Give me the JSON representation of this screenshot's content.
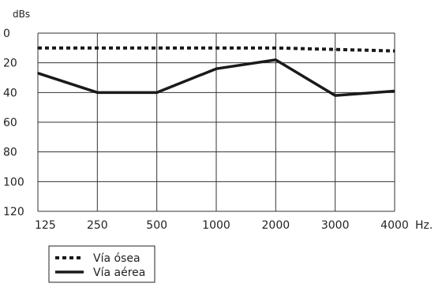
{
  "chart_data": {
    "type": "line",
    "ylabel": "dBs",
    "x_unit": "Hz.",
    "categories": [
      "125",
      "250",
      "500",
      "1000",
      "2000",
      "3000",
      "4000"
    ],
    "y_ticks": [
      "0",
      "20",
      "40",
      "60",
      "80",
      "100",
      "120"
    ],
    "ylim": [
      0,
      120
    ],
    "y_inverted": true,
    "grid": true,
    "legend_position": "bottom-left",
    "series": [
      {
        "name": "Vía ósea",
        "style": "dotted",
        "color": "#1a1a1a",
        "values": [
          10,
          10,
          10,
          10,
          10,
          11,
          12
        ]
      },
      {
        "name": "Vía aérea",
        "style": "solid",
        "color": "#1a1a1a",
        "values": [
          27,
          40,
          40,
          24,
          18,
          42,
          39
        ]
      }
    ]
  }
}
